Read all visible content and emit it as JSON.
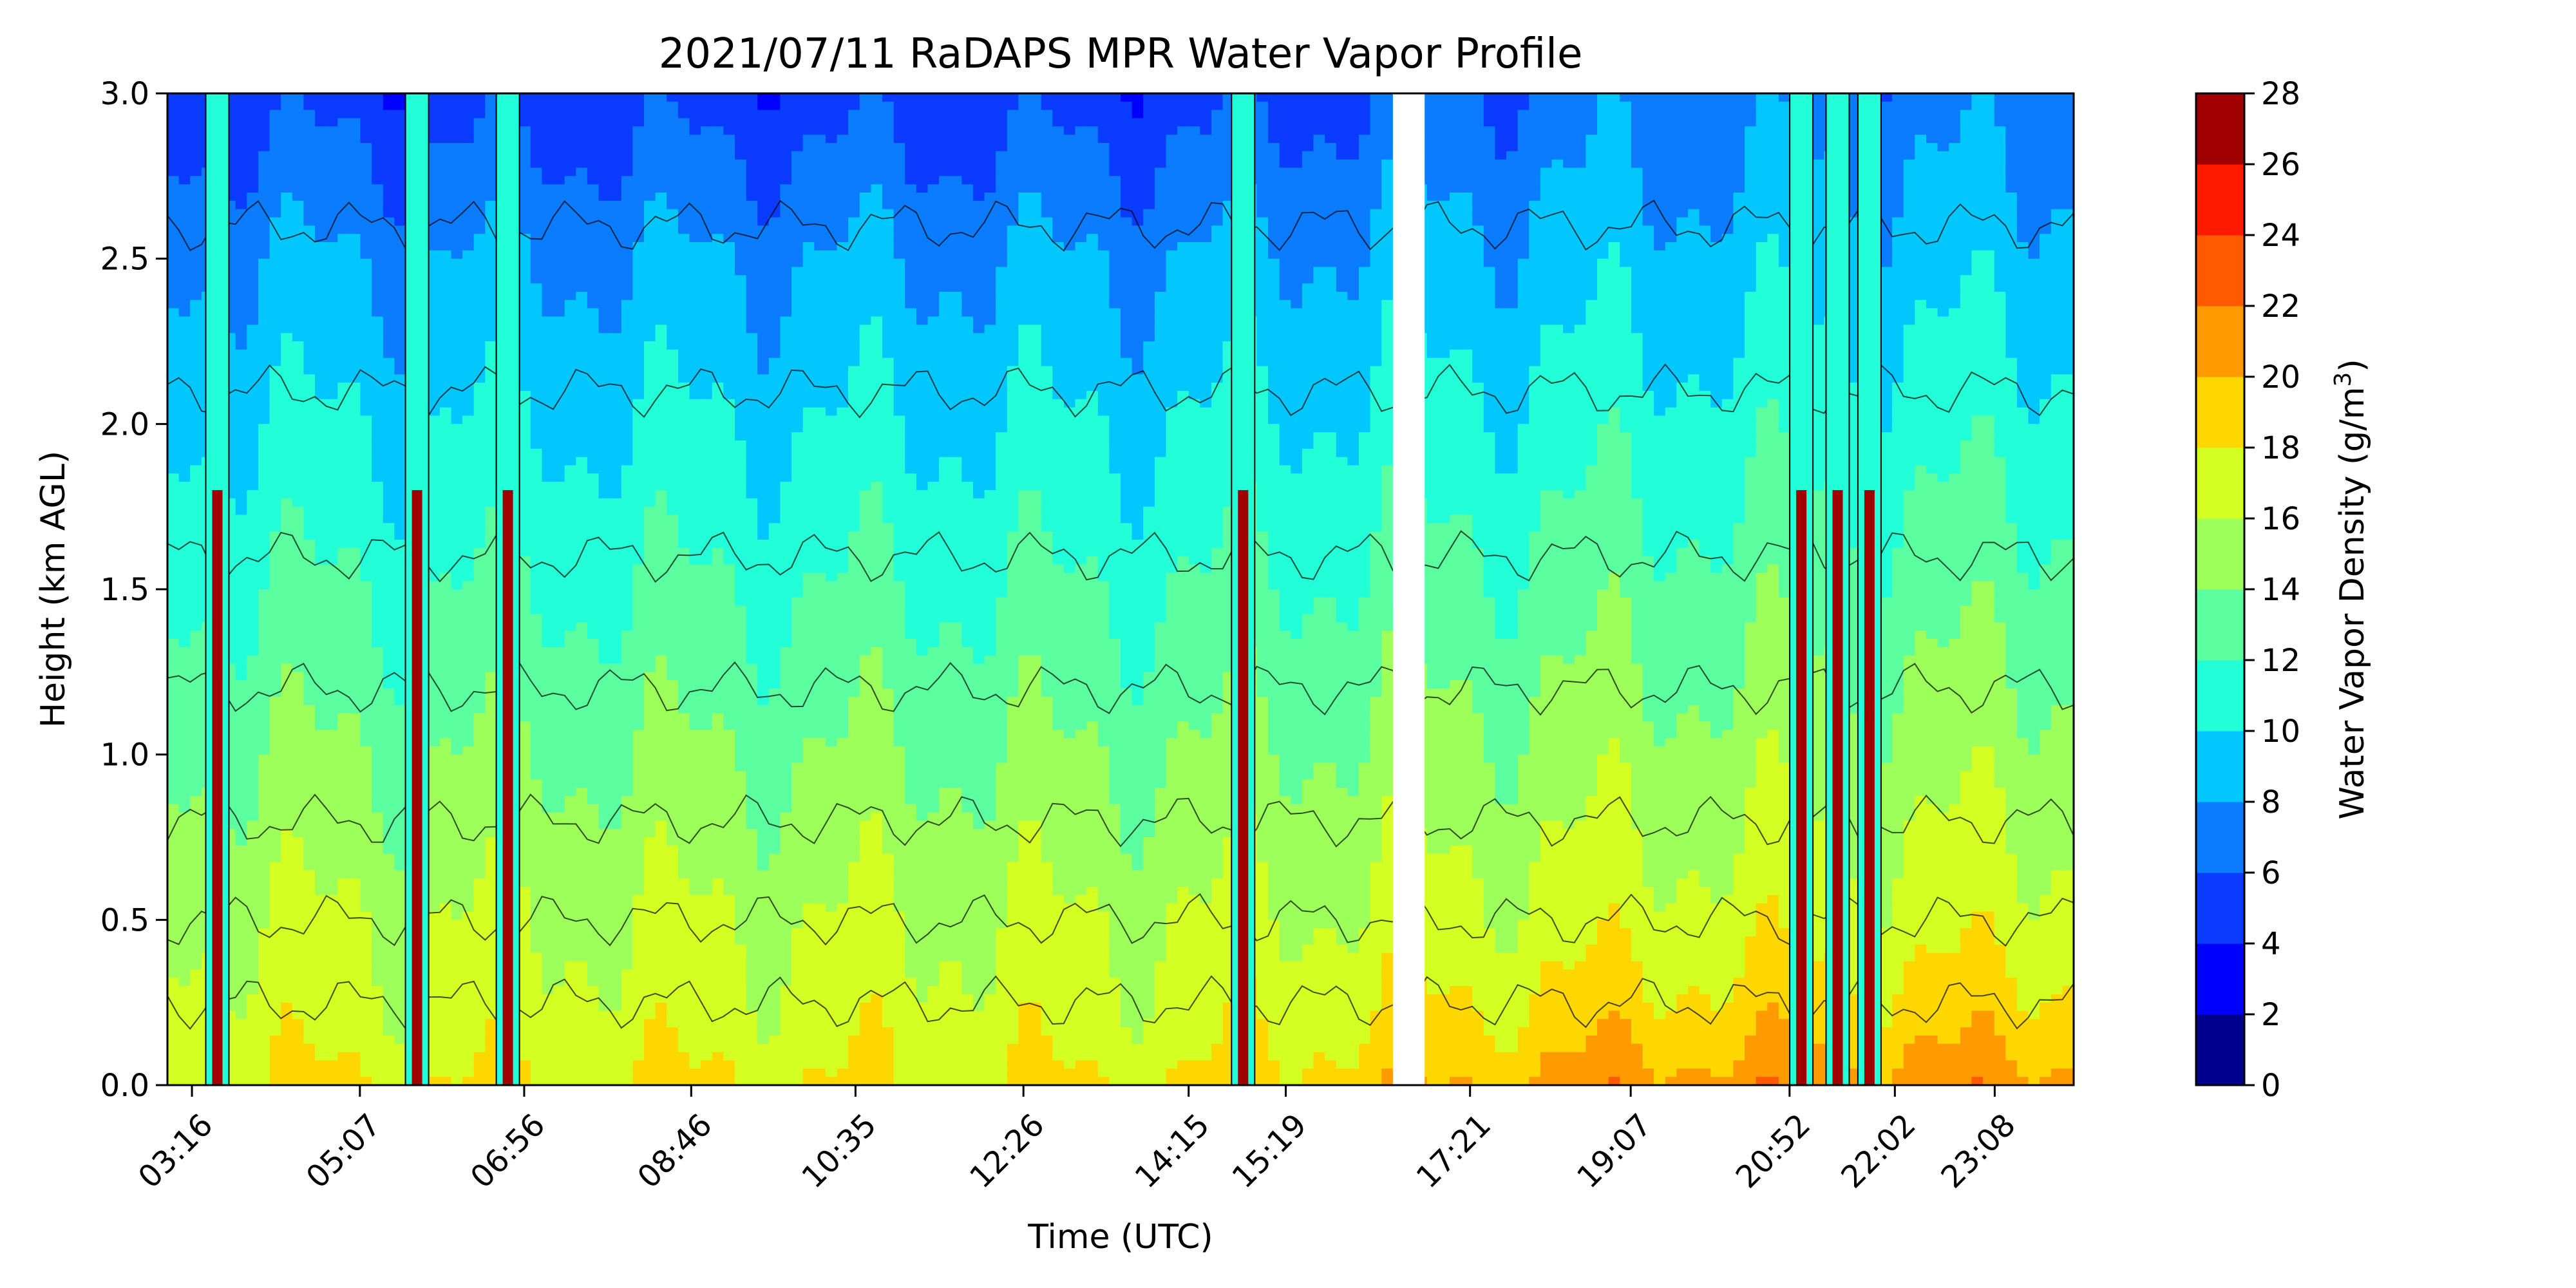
{
  "chart_data": {
    "type": "heatmap",
    "subtype": "filled-contour",
    "title": "2021/07/11 RaDAPS MPR Water Vapor Profile",
    "xlabel": "Time (UTC)",
    "ylabel": "Height (km AGL)",
    "x_tick_labels": [
      "03:16",
      "05:07",
      "06:56",
      "08:46",
      "10:35",
      "12:26",
      "14:15",
      "15:19",
      "17:21",
      "19:07",
      "20:52",
      "22:02",
      "23:08"
    ],
    "ylim": [
      0.0,
      3.0
    ],
    "y_ticks": [
      0.0,
      0.5,
      1.0,
      1.5,
      2.0,
      2.5,
      3.0
    ],
    "y_tick_labels": [
      "0.0",
      "0.5",
      "1.0",
      "1.5",
      "2.0",
      "2.5",
      "3.0"
    ],
    "colorbar": {
      "label_prefix": "Water Vapor Density (g/m",
      "label_sup": "3",
      "label_suffix": ")",
      "levels": [
        0,
        2,
        4,
        6,
        8,
        10,
        12,
        14,
        16,
        18,
        20,
        22,
        24,
        26,
        28
      ],
      "colors": [
        "#00007f",
        "#0000f1",
        "#004cff",
        "#00a4ff",
        "#29ffce",
        "#7dff7a",
        "#ceff29",
        "#ffc400",
        "#ffc400",
        "#ff6800",
        "#f10800",
        "#800000",
        "#800000",
        "#800000"
      ],
      "band_colors": [
        "#00008f",
        "#0000ff",
        "#0a3cff",
        "#0a7cff",
        "#00c8ff",
        "#22ffd8",
        "#5cffa0",
        "#9cff5a",
        "#d4ff22",
        "#ffd700",
        "#ff9a00",
        "#ff5a00",
        "#ff1a00",
        "#a00000"
      ]
    },
    "time_ticks_hours": [
      3.27,
      5.12,
      6.93,
      8.77,
      10.58,
      12.43,
      14.25,
      15.32,
      17.35,
      19.12,
      20.87,
      22.03,
      23.13
    ],
    "xlim_hours": [
      3.0,
      24.0
    ],
    "data_gap_hours": [
      16.5,
      16.85
    ],
    "height_profile_km": [
      0.0,
      0.2,
      0.5,
      1.0,
      1.5,
      2.0,
      2.5,
      3.0
    ],
    "density_profile_morning": [
      18,
      17,
      16,
      14,
      12,
      10,
      8,
      5
    ],
    "density_profile_evening": [
      21,
      19,
      17,
      15,
      13,
      11,
      9,
      7
    ],
    "precip_spikes_hours": [
      3.55,
      5.75,
      6.75,
      14.85,
      21.0,
      21.4,
      21.75
    ]
  }
}
